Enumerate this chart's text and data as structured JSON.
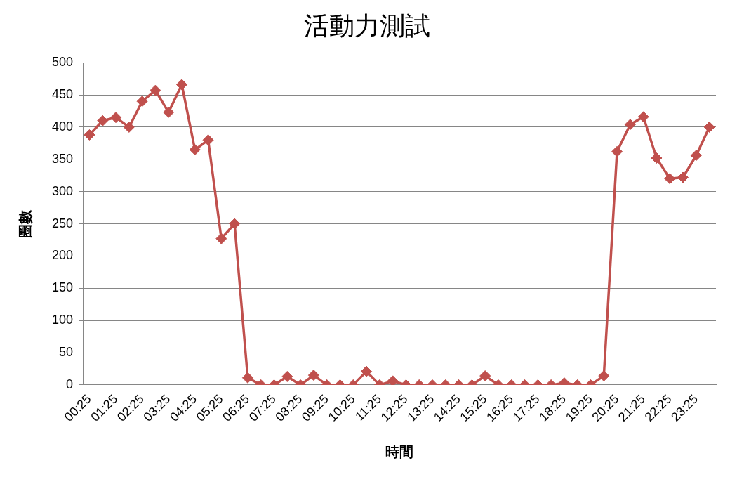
{
  "chart_data": {
    "type": "line",
    "title": "活動力測試",
    "xlabel": "時間",
    "ylabel": "圈數",
    "categories": [
      "00:25",
      null,
      "01:25",
      null,
      "02:25",
      null,
      "03:25",
      null,
      "04:25",
      null,
      "05:25",
      null,
      "06:25",
      null,
      "07:25",
      null,
      "08:25",
      null,
      "09:25",
      null,
      "10:25",
      null,
      "11:25",
      null,
      "12:25",
      null,
      "13:25",
      null,
      "14:25",
      null,
      "15:25",
      null,
      "16:25",
      null,
      "17:25",
      null,
      "18:25",
      null,
      "19:25",
      null,
      "20:25",
      null,
      "21:25",
      null,
      "22:25",
      null,
      "23:25",
      null
    ],
    "values": [
      388,
      410,
      415,
      400,
      440,
      457,
      423,
      466,
      365,
      380,
      227,
      250,
      11,
      0,
      0,
      13,
      0,
      15,
      0,
      0,
      0,
      21,
      0,
      6,
      0,
      0,
      0,
      0,
      0,
      0,
      14,
      0,
      0,
      0,
      0,
      0,
      3,
      0,
      0,
      14,
      362,
      404,
      416,
      352,
      320,
      322,
      356,
      400
    ],
    "color": "#c0504d",
    "ylim": [
      0,
      500
    ],
    "yticks": [
      0,
      50,
      100,
      150,
      200,
      250,
      300,
      350,
      400,
      450,
      500
    ],
    "grid": "y",
    "legend": false,
    "marker": "diamond",
    "line_style": "solid"
  }
}
